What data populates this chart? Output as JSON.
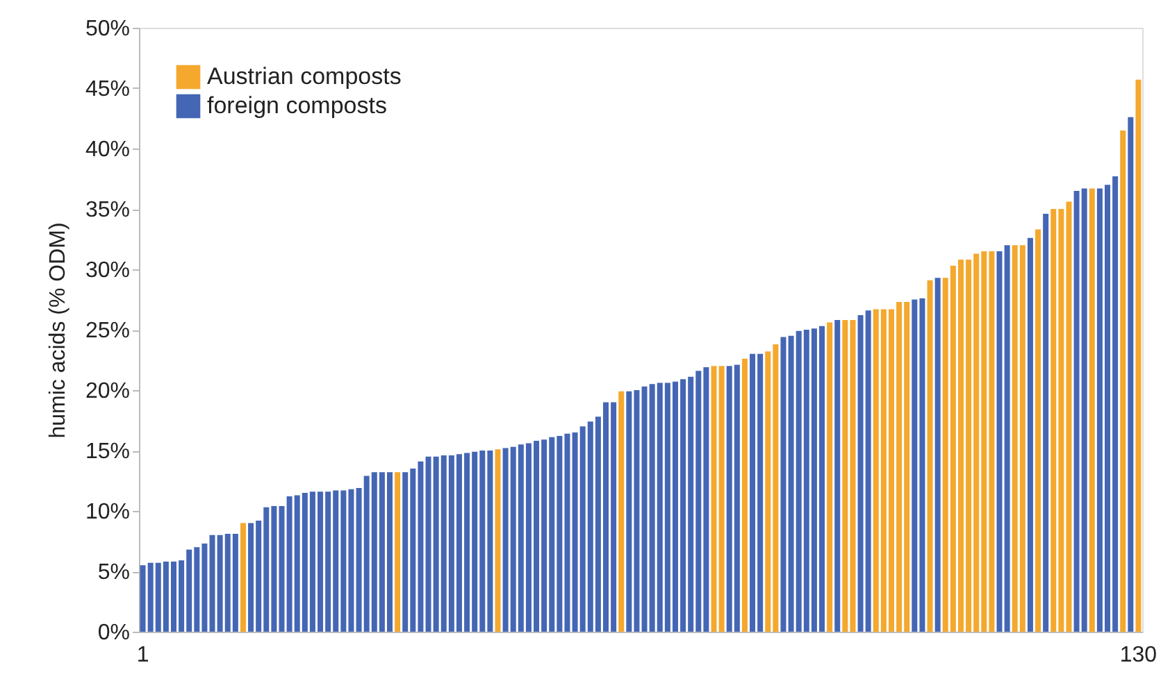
{
  "chart_data": {
    "type": "bar",
    "ylabel": "humic acids (% ODM)",
    "legend": "top left",
    "grid": false,
    "categories": [
      "1",
      null,
      null,
      null,
      null,
      null,
      null,
      null,
      null,
      null,
      null,
      null,
      null,
      null,
      null,
      null,
      null,
      null,
      null,
      null,
      null,
      null,
      null,
      null,
      null,
      null,
      null,
      null,
      null,
      null,
      null,
      null,
      null,
      null,
      null,
      null,
      null,
      null,
      null,
      null,
      null,
      null,
      null,
      null,
      null,
      null,
      null,
      null,
      null,
      null,
      null,
      null,
      null,
      null,
      null,
      null,
      null,
      null,
      null,
      null,
      null,
      null,
      null,
      null,
      null,
      null,
      null,
      null,
      null,
      null,
      null,
      null,
      null,
      null,
      null,
      null,
      null,
      null,
      null,
      null,
      null,
      null,
      null,
      null,
      null,
      null,
      null,
      null,
      null,
      null,
      null,
      null,
      null,
      null,
      null,
      null,
      null,
      null,
      null,
      null,
      null,
      null,
      null,
      null,
      null,
      null,
      null,
      null,
      null,
      null,
      null,
      null,
      null,
      null,
      null,
      null,
      null,
      null,
      null,
      null,
      null,
      null,
      null,
      null,
      null,
      null,
      null,
      null,
      null,
      "130"
    ],
    "ylim": [
      0,
      50
    ],
    "yticks": [
      {
        "value": 0,
        "label": "0%"
      },
      {
        "value": 5,
        "label": "5%"
      },
      {
        "value": 10,
        "label": "10%"
      },
      {
        "value": 15,
        "label": "15%"
      },
      {
        "value": 20,
        "label": "20%"
      },
      {
        "value": 25,
        "label": "25%"
      },
      {
        "value": 30,
        "label": "30%"
      },
      {
        "value": 35,
        "label": "35%"
      },
      {
        "value": 40,
        "label": "40%"
      },
      {
        "value": 45,
        "label": "45%"
      },
      {
        "value": 50,
        "label": "50%"
      }
    ],
    "series": [
      {
        "name": "Austrian composts",
        "color": "#f4a82e",
        "values": [
          null,
          null,
          null,
          null,
          null,
          null,
          null,
          null,
          null,
          null,
          null,
          null,
          null,
          9.0,
          null,
          null,
          null,
          null,
          null,
          null,
          null,
          null,
          null,
          null,
          null,
          null,
          null,
          null,
          null,
          null,
          null,
          null,
          null,
          13.2,
          null,
          null,
          null,
          null,
          null,
          null,
          null,
          null,
          null,
          null,
          null,
          null,
          15.1,
          null,
          null,
          null,
          null,
          null,
          null,
          null,
          null,
          null,
          null,
          null,
          null,
          null,
          null,
          null,
          19.9,
          null,
          null,
          null,
          null,
          null,
          null,
          null,
          null,
          null,
          null,
          null,
          22.0,
          22.0,
          null,
          null,
          22.6,
          null,
          null,
          23.2,
          23.8,
          null,
          null,
          null,
          null,
          null,
          null,
          25.6,
          null,
          25.8,
          25.8,
          null,
          null,
          26.7,
          26.7,
          26.7,
          27.3,
          27.3,
          null,
          null,
          29.1,
          null,
          29.3,
          30.3,
          30.8,
          30.8,
          31.3,
          31.5,
          31.5,
          null,
          null,
          32.0,
          32.0,
          null,
          33.3,
          null,
          35.0,
          35.0,
          35.6,
          null,
          null,
          36.7,
          null,
          null,
          null,
          41.5,
          null,
          45.7
        ]
      },
      {
        "name": "foreign composts",
        "color": "#4466b4",
        "values": [
          5.5,
          5.7,
          5.7,
          5.8,
          5.8,
          5.9,
          6.8,
          7.0,
          7.3,
          8.0,
          8.0,
          8.1,
          8.1,
          null,
          9.0,
          9.2,
          10.3,
          10.4,
          10.4,
          11.2,
          11.3,
          11.5,
          11.6,
          11.6,
          11.6,
          11.7,
          11.7,
          11.8,
          11.9,
          12.9,
          13.2,
          13.2,
          13.2,
          null,
          13.2,
          13.5,
          14.1,
          14.5,
          14.5,
          14.6,
          14.6,
          14.7,
          14.8,
          14.9,
          15.0,
          15.0,
          null,
          15.2,
          15.3,
          15.5,
          15.6,
          15.8,
          15.9,
          16.1,
          16.2,
          16.4,
          16.5,
          17.0,
          17.4,
          17.8,
          19.0,
          19.0,
          null,
          19.9,
          20.0,
          20.3,
          20.5,
          20.6,
          20.6,
          20.7,
          20.9,
          21.1,
          21.6,
          21.9,
          null,
          null,
          22.0,
          22.1,
          null,
          23.0,
          23.0,
          null,
          null,
          24.4,
          24.5,
          24.9,
          25.0,
          25.1,
          25.3,
          null,
          25.8,
          null,
          null,
          26.2,
          26.6,
          null,
          null,
          null,
          null,
          null,
          27.5,
          27.6,
          null,
          29.3,
          null,
          null,
          null,
          null,
          null,
          null,
          null,
          31.5,
          32.0,
          null,
          null,
          32.6,
          null,
          34.6,
          null,
          null,
          null,
          36.5,
          36.7,
          null,
          36.7,
          37.0,
          37.7,
          null,
          42.6,
          null
        ]
      }
    ]
  }
}
